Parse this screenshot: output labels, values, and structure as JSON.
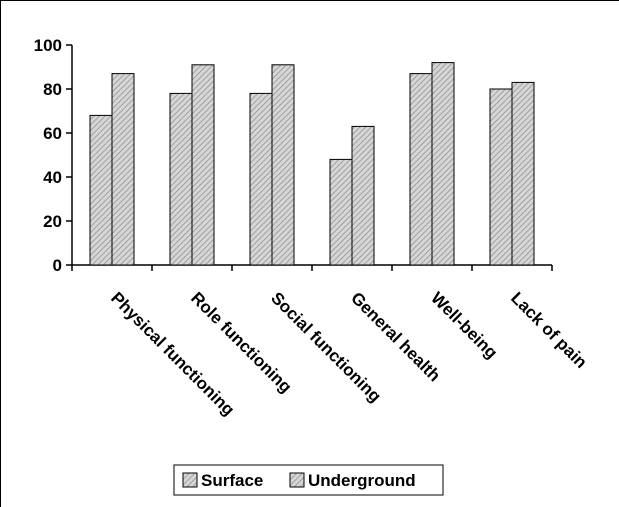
{
  "chart_data": {
    "type": "bar",
    "title": "",
    "xlabel": "",
    "ylabel": "",
    "ylim": [
      0,
      100
    ],
    "yticks": [
      0,
      20,
      40,
      60,
      80,
      100
    ],
    "categories": [
      "Physical functioning",
      "Role functioning",
      "Social functioning",
      "General health",
      "Well-being",
      "Lack of pain"
    ],
    "series": [
      {
        "name": "Surface",
        "values": [
          68,
          78,
          78,
          48,
          87,
          80
        ]
      },
      {
        "name": "Underground",
        "values": [
          87,
          91,
          91,
          63,
          92,
          83
        ]
      }
    ],
    "legend_position": "bottom",
    "grid": false,
    "bar_fill": "#c8c8c8",
    "bar_stroke": "#000000"
  }
}
